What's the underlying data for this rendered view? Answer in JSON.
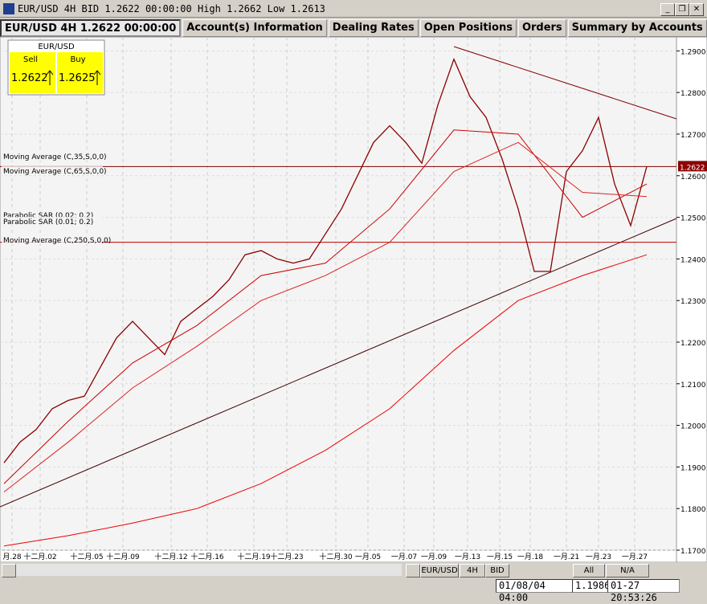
{
  "window": {
    "title": "EUR/USD 4H BID 1.2622 00:00:00 High 1.2662 Low 1.2613"
  },
  "tabs": [
    "EUR/USD 4H 1.2622 00:00:00",
    "Account(s) Information",
    "Dealing Rates",
    "Open Positions",
    "Orders",
    "Summary by Accounts"
  ],
  "quote": {
    "symbol": "EUR/USD",
    "sell_label": "Sell",
    "buy_label": "Buy",
    "sell": "1.2622",
    "buy": "1.2625"
  },
  "chart": {
    "ylim": [
      1.17,
      1.292
    ],
    "yticks": [
      {
        "value": 1.29,
        "label": "1.2900"
      },
      {
        "value": 1.28,
        "label": "1.2800"
      },
      {
        "value": 1.27,
        "label": "1.2700"
      },
      {
        "value": 1.26,
        "label": "1.2600"
      },
      {
        "value": 1.25,
        "label": "1.2500"
      },
      {
        "value": 1.24,
        "label": "1.2400"
      },
      {
        "value": 1.23,
        "label": "1.2300"
      },
      {
        "value": 1.22,
        "label": "1.2200"
      },
      {
        "value": 1.21,
        "label": "1.2100"
      },
      {
        "value": 1.2,
        "label": "1.2000"
      },
      {
        "value": 1.19,
        "label": "1.1900"
      },
      {
        "value": 1.18,
        "label": "1.1800"
      },
      {
        "value": 1.17,
        "label": "1.1700"
      }
    ],
    "current_price": {
      "value": 1.2622,
      "label": "1.2622"
    },
    "level_line": 1.244,
    "x_labels": [
      "月.28",
      "十二月.02",
      "十二月.05",
      "十二月.09",
      "十二月.12",
      "十二月.16",
      "十二月.19",
      "十二月.23",
      "十二月.30",
      "一月.05",
      "一月.07",
      "一月.09",
      "一月.13",
      "一月.15",
      "一月.18",
      "一月.21",
      "一月.23",
      "一月.27"
    ],
    "indicators": [
      "Moving Average (C,35,S,0,0)",
      "Moving Average (C,65,S,0,0)",
      "Parabolic SAR (0.02; 0.2)",
      "Parabolic SAR (0.01; 0.2)",
      "Moving Average (C,250,S,0,0)"
    ],
    "series": [
      {
        "name": "Close",
        "color": "#8b0000",
        "values": [
          1.191,
          1.196,
          1.199,
          1.204,
          1.206,
          1.207,
          1.214,
          1.221,
          1.225,
          1.221,
          1.217,
          1.225,
          1.228,
          1.231,
          1.235,
          1.241,
          1.242,
          1.24,
          1.239,
          1.24,
          1.246,
          1.252,
          1.26,
          1.268,
          1.272,
          1.268,
          1.263,
          1.277,
          1.288,
          1.279,
          1.274,
          1.264,
          1.252,
          1.237,
          1.237,
          1.261,
          1.266,
          1.274,
          1.258,
          1.248,
          1.2622
        ]
      },
      {
        "name": "MA35",
        "color": "#cc0000",
        "values": [
          1.186,
          1.201,
          1.215,
          1.224,
          1.236,
          1.239,
          1.252,
          1.271,
          1.27,
          1.25,
          1.258
        ]
      },
      {
        "name": "MA65",
        "color": "#dd2222",
        "values": [
          1.184,
          1.196,
          1.209,
          1.219,
          1.23,
          1.236,
          1.244,
          1.261,
          1.268,
          1.256,
          1.255
        ]
      },
      {
        "name": "MA250",
        "color": "#ee0000",
        "values": [
          1.171,
          1.1735,
          1.1765,
          1.18,
          1.186,
          1.194,
          1.204,
          1.218,
          1.23,
          1.236,
          1.241
        ]
      }
    ]
  },
  "toolbar": [
    "EUR/USD",
    "4H",
    "BID",
    "All",
    "N/A"
  ],
  "status": [
    "01/08/04 04:00",
    "1.1986",
    "01-27 20:53:26"
  ]
}
